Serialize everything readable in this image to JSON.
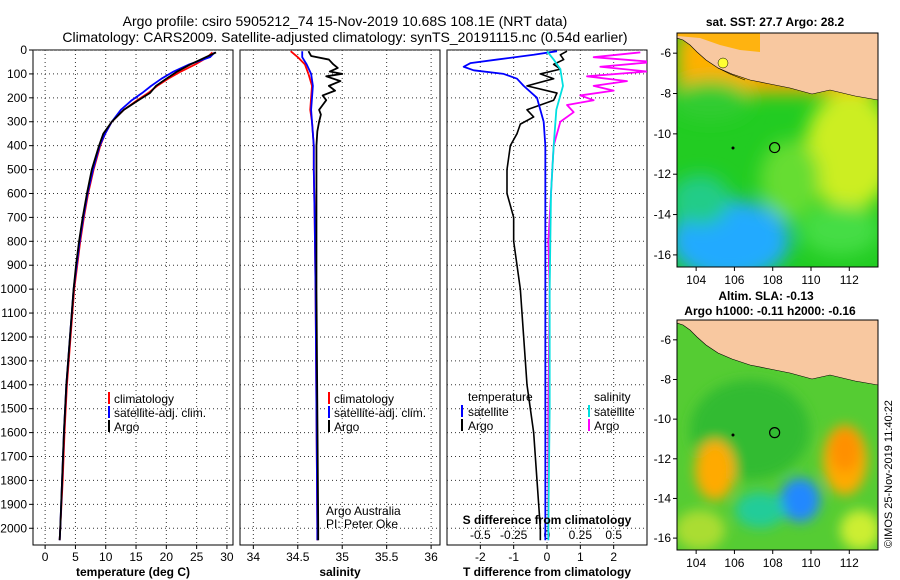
{
  "header": {
    "title_line1": "Argo profile: csiro 5905212_74 15-Nov-2019 10.68S 108.1E (NRT data)",
    "title_line2": "Climatology: CARS2009. Satellite-adjusted climatology: synTS_20191115.nc (0.54d earlier)"
  },
  "colors": {
    "climatology": "#ff0000",
    "satellite": "#0000ff",
    "argo": "#000000",
    "sal_satellite": "#00e0e0",
    "sal_argo": "#ff00ff",
    "land": "#f8c8a0"
  },
  "depth_axis": {
    "ticks": [
      0,
      100,
      200,
      300,
      400,
      500,
      600,
      700,
      800,
      900,
      1000,
      1100,
      1200,
      1300,
      1400,
      1500,
      1600,
      1700,
      1800,
      1900,
      2000
    ]
  },
  "chart_data": [
    {
      "type": "line",
      "name": "temperature",
      "xlabel": "temperature (deg C)",
      "ylabel": "depth",
      "xlim": [
        -2,
        31
      ],
      "ylim": [
        0,
        2070
      ],
      "xticks": [
        0,
        5,
        10,
        15,
        20,
        25,
        30
      ],
      "legend": [
        "climatology",
        "satellite-adj. clim.",
        "Argo"
      ],
      "series": [
        {
          "name": "climatology",
          "depth": [
            10,
            30,
            60,
            90,
            120,
            150,
            180,
            210,
            250,
            300,
            350,
            400,
            500,
            600,
            700,
            800,
            900,
            1000,
            1200,
            1400,
            1600,
            1800,
            2000,
            2050
          ],
          "values": [
            27.6,
            26.8,
            24.8,
            22.4,
            20.3,
            18.5,
            17.0,
            15.2,
            13.0,
            11.0,
            9.9,
            9.1,
            8.0,
            7.1,
            6.4,
            5.8,
            5.3,
            4.8,
            4.2,
            3.6,
            3.2,
            2.9,
            2.5,
            2.4
          ]
        },
        {
          "name": "satellite-adj. clim.",
          "depth": [
            10,
            30,
            60,
            90,
            120,
            150,
            180,
            210,
            250,
            300,
            350,
            400,
            500,
            600,
            700,
            800,
            900,
            1000,
            1200,
            1400,
            1600,
            1800,
            2000,
            2050
          ],
          "values": [
            28.0,
            27.2,
            23.8,
            21.2,
            19.2,
            17.5,
            16.0,
            14.3,
            12.5,
            11.0,
            9.9,
            9.0,
            7.9,
            7.0,
            6.3,
            5.7,
            5.2,
            4.7,
            4.1,
            3.5,
            3.1,
            2.8,
            2.5,
            2.4
          ]
        },
        {
          "name": "Argo",
          "depth": [
            10,
            30,
            60,
            90,
            120,
            150,
            180,
            210,
            250,
            300,
            350,
            400,
            500,
            600,
            700,
            800,
            900,
            1000,
            1200,
            1400,
            1600,
            1800,
            2000,
            2050
          ],
          "values": [
            28.2,
            26.5,
            24.0,
            21.8,
            20.0,
            18.3,
            17.3,
            15.4,
            13.0,
            11.0,
            9.6,
            8.9,
            7.7,
            6.9,
            6.2,
            5.6,
            5.1,
            4.7,
            4.1,
            3.5,
            3.1,
            2.8,
            2.5,
            2.4
          ]
        }
      ]
    },
    {
      "type": "line",
      "name": "salinity",
      "xlabel": "salinity",
      "ylabel": "depth",
      "xlim": [
        33.85,
        36.1
      ],
      "ylim": [
        0,
        2070
      ],
      "xticks": [
        34,
        34.5,
        35,
        35.5,
        36
      ],
      "legend": [
        "climatology",
        "satellite-adj. clim.",
        "Argo"
      ],
      "annotation": [
        "Argo Australia",
        "PI: Peter Oke"
      ],
      "series": [
        {
          "name": "climatology",
          "depth": [
            5,
            30,
            60,
            100,
            150,
            200,
            250,
            300,
            400,
            500,
            700,
            1000,
            1500,
            2000,
            2050
          ],
          "values": [
            34.42,
            34.5,
            34.58,
            34.62,
            34.66,
            34.65,
            34.64,
            34.66,
            34.68,
            34.68,
            34.69,
            34.7,
            34.71,
            34.72,
            34.72
          ]
        },
        {
          "name": "satellite-adj. clim.",
          "depth": [
            5,
            30,
            60,
            100,
            150,
            200,
            250,
            300,
            400,
            500,
            700,
            1000,
            1500,
            2000,
            2050
          ],
          "values": [
            34.55,
            34.55,
            34.6,
            34.65,
            34.67,
            34.66,
            34.65,
            34.66,
            34.68,
            34.68,
            34.69,
            34.7,
            34.71,
            34.72,
            34.72
          ]
        },
        {
          "name": "Argo",
          "depth": [
            5,
            25,
            40,
            60,
            75,
            90,
            100,
            110,
            130,
            150,
            170,
            190,
            210,
            230,
            250,
            270,
            300,
            340,
            400,
            500,
            700,
            1000,
            1500,
            2000,
            2050
          ],
          "values": [
            34.62,
            34.65,
            34.85,
            34.9,
            34.95,
            34.86,
            35.0,
            34.82,
            34.98,
            34.85,
            34.92,
            34.78,
            34.82,
            34.78,
            34.74,
            34.76,
            34.74,
            34.72,
            34.71,
            34.71,
            34.71,
            34.71,
            34.72,
            34.73,
            34.73
          ]
        }
      ]
    },
    {
      "type": "line",
      "name": "difference",
      "xlabel": "T difference from climatology",
      "xlabel_top": "S difference from climatology",
      "ylabel": "depth",
      "xlim": [
        -3,
        3
      ],
      "ylim": [
        0,
        2070
      ],
      "xticks": [
        -2,
        -1,
        0,
        1,
        2
      ],
      "xticks_s": [
        "-0.5",
        "-0.25",
        "0",
        "0.25",
        "0.5"
      ],
      "legend_temperature": {
        "title": "temperature",
        "items": [
          "satellite",
          "Argo"
        ]
      },
      "legend_salinity": {
        "title": "salinity",
        "items": [
          "satellite",
          "Argo"
        ]
      },
      "series": [
        {
          "name": "T satellite",
          "depth": [
            5,
            20,
            40,
            55,
            70,
            85,
            100,
            120,
            150,
            200,
            300,
            400,
            600,
            1000,
            1500,
            2000,
            2050
          ],
          "values": [
            0.3,
            -0.4,
            -1.5,
            -2.3,
            -2.5,
            -2.2,
            -1.3,
            -0.9,
            -0.7,
            -0.3,
            -0.1,
            -0.05,
            -0.05,
            -0.05,
            -0.05,
            -0.05,
            -0.05
          ]
        },
        {
          "name": "T Argo",
          "depth": [
            5,
            20,
            40,
            60,
            80,
            100,
            120,
            150,
            180,
            210,
            250,
            280,
            310,
            350,
            400,
            500,
            600,
            700,
            800,
            1000,
            1200,
            1400,
            1600,
            1800,
            2000,
            2050
          ],
          "values": [
            0.6,
            0.4,
            0.5,
            0.2,
            0.4,
            -0.2,
            0.2,
            -0.6,
            0.3,
            0.2,
            -0.6,
            -0.4,
            -0.8,
            -0.9,
            -1.1,
            -1.2,
            -1.2,
            -1.0,
            -1.0,
            -0.8,
            -0.7,
            -0.6,
            -0.4,
            -0.3,
            -0.2,
            -0.2
          ]
        },
        {
          "name": "S satellite",
          "depth": [
            5,
            40,
            80,
            150,
            250,
            400,
            600,
            1000,
            1500,
            2000,
            2050
          ],
          "values": [
            0.0,
            0.05,
            0.1,
            0.12,
            0.07,
            0.05,
            0.03,
            0.02,
            0.02,
            0.01,
            0.01
          ]
        },
        {
          "name": "S Argo",
          "depth": [
            10,
            30,
            50,
            70,
            90,
            110,
            130,
            150,
            170,
            190,
            210,
            230,
            260,
            300,
            400,
            600,
            800,
            1000,
            1500,
            2000,
            2050
          ],
          "values": [
            0.7,
            0.35,
            0.8,
            0.4,
            0.75,
            0.3,
            0.6,
            0.35,
            0.5,
            0.25,
            0.35,
            0.15,
            0.2,
            0.1,
            0.05,
            0.03,
            0.01,
            0.02,
            0.01,
            0.01,
            0.01
          ]
        }
      ]
    },
    {
      "type": "heatmap",
      "name": "sst_map",
      "title": "sat. SST: 27.7 Argo: 28.2",
      "xticks": [
        104,
        106,
        108,
        110,
        112
      ],
      "yticks": [
        -6,
        -8,
        -10,
        -12,
        -14,
        -16
      ],
      "xlim": [
        103,
        113.5
      ],
      "ylim": [
        -16.6,
        -5.0
      ],
      "marker": {
        "lon": 108.1,
        "lat": -10.68
      }
    },
    {
      "type": "heatmap",
      "name": "sla_map",
      "title_line1": "Altim. SLA: -0.13",
      "title_line2": "Argo h1000: -0.11 h2000: -0.16",
      "xticks": [
        104,
        106,
        108,
        110,
        112
      ],
      "yticks": [
        -6,
        -8,
        -10,
        -12,
        -14,
        -16
      ],
      "xlim": [
        103,
        113.5
      ],
      "ylim": [
        -16.6,
        -5.0
      ],
      "marker": {
        "lon": 108.1,
        "lat": -10.68
      }
    }
  ],
  "footer": {
    "credit": "©IMOS 25-Nov-2019 11:40:22"
  }
}
